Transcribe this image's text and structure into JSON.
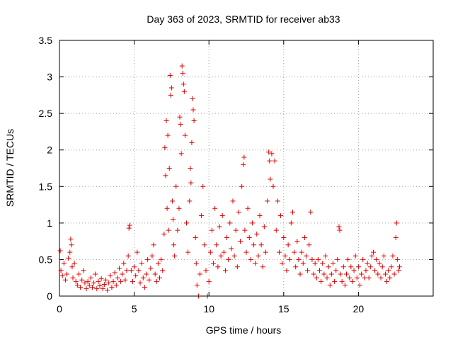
{
  "chart_data": {
    "type": "scatter",
    "title": "Day 363 of 2023, SRMTID for receiver ab33",
    "xlabel": "GPS time / hours",
    "ylabel": "SRMTID / TECUs",
    "xlim": [
      0,
      25
    ],
    "ylim": [
      0,
      3.5
    ],
    "xticks": [
      0,
      5,
      10,
      15,
      20
    ],
    "xtick_labels": [
      "0",
      "5",
      "10",
      "15",
      "20"
    ],
    "yticks": [
      0,
      0.5,
      1,
      1.5,
      2,
      2.5,
      3,
      3.5
    ],
    "ytick_labels": [
      "0",
      "0.5",
      "1",
      "1.5",
      "2",
      "2.5",
      "3",
      "3.5"
    ],
    "grid": true,
    "marker": "+",
    "color": "#e00000",
    "series": [
      {
        "name": "SRMTID",
        "points": [
          [
            0.05,
            0.62
          ],
          [
            0.1,
            0.35
          ],
          [
            0.2,
            0.28
          ],
          [
            0.3,
            0.45
          ],
          [
            0.4,
            0.22
          ],
          [
            0.5,
            0.3
          ],
          [
            0.6,
            0.52
          ],
          [
            0.7,
            0.6
          ],
          [
            0.75,
            0.78
          ],
          [
            0.8,
            0.7
          ],
          [
            0.85,
            0.4
          ],
          [
            0.9,
            0.25
          ],
          [
            1.0,
            0.45
          ],
          [
            1.1,
            0.2
          ],
          [
            1.2,
            0.15
          ],
          [
            1.3,
            0.3
          ],
          [
            1.4,
            0.12
          ],
          [
            1.5,
            0.22
          ],
          [
            1.6,
            0.35
          ],
          [
            1.7,
            0.18
          ],
          [
            1.8,
            0.1
          ],
          [
            1.9,
            0.2
          ],
          [
            2.0,
            0.15
          ],
          [
            2.1,
            0.25
          ],
          [
            2.2,
            0.12
          ],
          [
            2.3,
            0.18
          ],
          [
            2.4,
            0.3
          ],
          [
            2.5,
            0.1
          ],
          [
            2.6,
            0.2
          ],
          [
            2.7,
            0.14
          ],
          [
            2.8,
            0.24
          ],
          [
            2.9,
            0.1
          ],
          [
            3.0,
            0.16
          ],
          [
            3.1,
            0.22
          ],
          [
            3.2,
            0.08
          ],
          [
            3.3,
            0.18
          ],
          [
            3.4,
            0.28
          ],
          [
            3.5,
            0.12
          ],
          [
            3.6,
            0.2
          ],
          [
            3.7,
            0.32
          ],
          [
            3.8,
            0.15
          ],
          [
            3.9,
            0.25
          ],
          [
            4.0,
            0.38
          ],
          [
            4.1,
            0.2
          ],
          [
            4.2,
            0.3
          ],
          [
            4.3,
            0.45
          ],
          [
            4.4,
            0.22
          ],
          [
            4.5,
            0.35
          ],
          [
            4.6,
            0.55
          ],
          [
            4.65,
            0.93
          ],
          [
            4.7,
            0.97
          ],
          [
            4.8,
            0.35
          ],
          [
            4.9,
            0.2
          ],
          [
            5.0,
            0.4
          ],
          [
            5.1,
            0.28
          ],
          [
            5.2,
            0.6
          ],
          [
            5.3,
            0.35
          ],
          [
            5.4,
            0.18
          ],
          [
            5.5,
            0.45
          ],
          [
            5.6,
            0.25
          ],
          [
            5.7,
            0.12
          ],
          [
            5.8,
            0.3
          ],
          [
            5.9,
            0.5
          ],
          [
            6.0,
            0.22
          ],
          [
            6.1,
            0.38
          ],
          [
            6.2,
            0.55
          ],
          [
            6.3,
            0.7
          ],
          [
            6.4,
            0.3
          ],
          [
            6.5,
            0.2
          ],
          [
            6.6,
            0.45
          ],
          [
            6.7,
            0.25
          ],
          [
            6.8,
            0.5
          ],
          [
            6.9,
            0.35
          ],
          [
            7.0,
            0.85
          ],
          [
            7.05,
            2.03
          ],
          [
            7.1,
            1.65
          ],
          [
            7.15,
            2.4
          ],
          [
            7.2,
            1.2
          ],
          [
            7.25,
            2.2
          ],
          [
            7.3,
            0.9
          ],
          [
            7.35,
            1.75
          ],
          [
            7.4,
            3.02
          ],
          [
            7.45,
            2.75
          ],
          [
            7.5,
            2.85
          ],
          [
            7.55,
            1.3
          ],
          [
            7.6,
            1.05
          ],
          [
            7.65,
            0.7
          ],
          [
            7.7,
            0.55
          ],
          [
            7.8,
            1.5
          ],
          [
            7.9,
            0.9
          ],
          [
            8.0,
            1.2
          ],
          [
            8.05,
            2.45
          ],
          [
            8.1,
            2.35
          ],
          [
            8.15,
            1.95
          ],
          [
            8.2,
            3.15
          ],
          [
            8.25,
            3.05
          ],
          [
            8.3,
            2.9
          ],
          [
            8.35,
            2.8
          ],
          [
            8.4,
            2.2
          ],
          [
            8.5,
            1.0
          ],
          [
            8.6,
            0.6
          ],
          [
            8.7,
            1.3
          ],
          [
            8.75,
            1.75
          ],
          [
            8.8,
            1.55
          ],
          [
            8.85,
            2.1
          ],
          [
            8.9,
            2.7
          ],
          [
            8.95,
            2.55
          ],
          [
            9.0,
            2.4
          ],
          [
            9.1,
            0.8
          ],
          [
            9.15,
            0.45
          ],
          [
            9.2,
            0.15
          ],
          [
            9.3,
            0.0
          ],
          [
            9.4,
            0.3
          ],
          [
            9.5,
            1.1
          ],
          [
            9.6,
            1.5
          ],
          [
            9.7,
            0.7
          ],
          [
            9.8,
            0.35
          ],
          [
            9.9,
            0.0
          ],
          [
            10.0,
            0.2
          ],
          [
            10.1,
            0.6
          ],
          [
            10.2,
            0.9
          ],
          [
            10.3,
            0.45
          ],
          [
            10.4,
            1.2
          ],
          [
            10.5,
            0.7
          ],
          [
            10.6,
            0.4
          ],
          [
            10.7,
            0.95
          ],
          [
            10.8,
            0.55
          ],
          [
            10.9,
            1.1
          ],
          [
            11.0,
            0.6
          ],
          [
            11.1,
            0.35
          ],
          [
            11.2,
            0.8
          ],
          [
            11.3,
            0.5
          ],
          [
            11.4,
            1.0
          ],
          [
            11.5,
            0.65
          ],
          [
            11.6,
            1.3
          ],
          [
            11.7,
            0.55
          ],
          [
            11.8,
            0.9
          ],
          [
            11.9,
            0.4
          ],
          [
            12.0,
            1.15
          ],
          [
            12.1,
            0.75
          ],
          [
            12.2,
            1.5
          ],
          [
            12.3,
            1.8
          ],
          [
            12.35,
            1.9
          ],
          [
            12.4,
            0.9
          ],
          [
            12.5,
            0.6
          ],
          [
            12.6,
            1.2
          ],
          [
            12.7,
            0.8
          ],
          [
            12.8,
            0.5
          ],
          [
            12.9,
            1.0
          ],
          [
            13.0,
            0.7
          ],
          [
            13.1,
            0.45
          ],
          [
            13.2,
            0.85
          ],
          [
            13.3,
            0.55
          ],
          [
            13.4,
            1.1
          ],
          [
            13.5,
            0.7
          ],
          [
            13.6,
            0.4
          ],
          [
            13.7,
            0.95
          ],
          [
            13.8,
            0.6
          ],
          [
            13.9,
            1.3
          ],
          [
            14.0,
            1.97
          ],
          [
            14.05,
            1.85
          ],
          [
            14.1,
            1.6
          ],
          [
            14.2,
            1.95
          ],
          [
            14.3,
            1.5
          ],
          [
            14.4,
            1.85
          ],
          [
            14.5,
            0.9
          ],
          [
            14.6,
            1.3
          ],
          [
            14.7,
            0.6
          ],
          [
            14.8,
            1.1
          ],
          [
            14.9,
            0.45
          ],
          [
            15.0,
            0.8
          ],
          [
            15.1,
            0.55
          ],
          [
            15.2,
            0.35
          ],
          [
            15.3,
            0.7
          ],
          [
            15.4,
            0.5
          ],
          [
            15.5,
            1.0
          ],
          [
            15.6,
            1.15
          ],
          [
            15.7,
            0.6
          ],
          [
            15.8,
            0.4
          ],
          [
            15.9,
            0.75
          ],
          [
            16.0,
            0.5
          ],
          [
            16.1,
            0.3
          ],
          [
            16.2,
            0.6
          ],
          [
            16.3,
            0.45
          ],
          [
            16.4,
            0.8
          ],
          [
            16.5,
            0.55
          ],
          [
            16.6,
            0.35
          ],
          [
            16.7,
            0.7
          ],
          [
            16.8,
            1.15
          ],
          [
            16.9,
            0.5
          ],
          [
            17.0,
            0.3
          ],
          [
            17.1,
            0.45
          ],
          [
            17.2,
            0.25
          ],
          [
            17.3,
            0.5
          ],
          [
            17.4,
            0.35
          ],
          [
            17.5,
            0.2
          ],
          [
            17.6,
            0.45
          ],
          [
            17.7,
            0.3
          ],
          [
            17.8,
            0.55
          ],
          [
            17.9,
            0.25
          ],
          [
            18.0,
            0.4
          ],
          [
            18.1,
            0.15
          ],
          [
            18.2,
            0.3
          ],
          [
            18.3,
            0.45
          ],
          [
            18.4,
            0.2
          ],
          [
            18.5,
            0.35
          ],
          [
            18.6,
            0.5
          ],
          [
            18.7,
            0.95
          ],
          [
            18.75,
            0.9
          ],
          [
            18.8,
            0.3
          ],
          [
            18.9,
            0.2
          ],
          [
            19.0,
            0.4
          ],
          [
            19.1,
            0.15
          ],
          [
            19.2,
            0.3
          ],
          [
            19.3,
            0.5
          ],
          [
            19.4,
            0.25
          ],
          [
            19.5,
            0.4
          ],
          [
            19.6,
            0.2
          ],
          [
            19.7,
            0.35
          ],
          [
            19.8,
            0.55
          ],
          [
            19.9,
            0.25
          ],
          [
            20.0,
            0.4
          ],
          [
            20.1,
            0.15
          ],
          [
            20.2,
            0.3
          ],
          [
            20.3,
            0.5
          ],
          [
            20.4,
            0.25
          ],
          [
            20.5,
            0.35
          ],
          [
            20.6,
            0.45
          ],
          [
            20.7,
            0.25
          ],
          [
            20.8,
            0.4
          ],
          [
            20.9,
            0.55
          ],
          [
            21.0,
            0.6
          ],
          [
            21.1,
            0.35
          ],
          [
            21.2,
            0.5
          ],
          [
            21.3,
            0.3
          ],
          [
            21.4,
            0.45
          ],
          [
            21.5,
            0.25
          ],
          [
            21.6,
            0.4
          ],
          [
            21.7,
            0.55
          ],
          [
            21.8,
            0.3
          ],
          [
            21.9,
            0.2
          ],
          [
            22.0,
            0.35
          ],
          [
            22.1,
            0.25
          ],
          [
            22.2,
            0.4
          ],
          [
            22.3,
            0.55
          ],
          [
            22.4,
            0.3
          ],
          [
            22.5,
            0.8
          ],
          [
            22.55,
            1.0
          ],
          [
            22.6,
            0.5
          ],
          [
            22.7,
            0.35
          ],
          [
            22.75,
            0.4
          ]
        ]
      }
    ]
  }
}
